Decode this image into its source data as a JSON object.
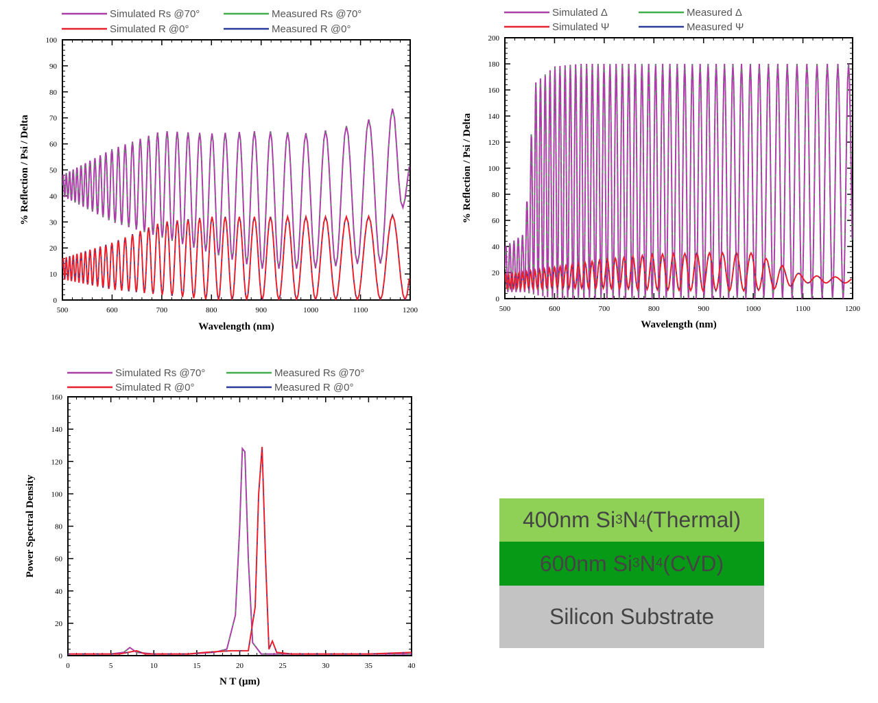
{
  "colors": {
    "sim_a": "#a83ea6",
    "meas_a": "#3fae49",
    "sim_b": "#e8202e",
    "meas_b": "#2a3a9a",
    "frame": "#000000"
  },
  "chart_data": [
    {
      "type": "line",
      "xlabel": "Wavelength (nm)",
      "ylabel": "% Reflection / Psi / Delta",
      "xlim": [
        500,
        1200
      ],
      "ylim": [
        0,
        100
      ],
      "xticks": [
        500,
        600,
        700,
        800,
        900,
        1000,
        1100,
        1200
      ],
      "yticks": [
        0,
        10,
        20,
        30,
        40,
        50,
        60,
        70,
        80,
        90,
        100
      ],
      "legend": {
        "placement": "top",
        "entries": [
          "Simulated Rs @70°",
          "Measured Rs @70°",
          "Simulated R @0°",
          "Measured R @0°"
        ]
      },
      "series": [
        {
          "name": "Simulated Rs @70°",
          "color_key": "sim_a",
          "envelope": {
            "x": [
              500,
              600,
              700,
              800,
              900,
              1000,
              1100,
              1170,
              1200
            ],
            "low": [
              40,
              30,
              24,
              18,
              12,
              12,
              14,
              14,
              52
            ],
            "high": [
              48,
              58,
              65,
              64,
              65,
              64,
              68,
              74,
              55
            ]
          },
          "fringe_spacing_nm": {
            "x": [
              500,
              1200
            ],
            "values": [
              6,
              52
            ]
          }
        },
        {
          "name": "Measured Rs @70°",
          "color_key": "meas_a",
          "overlaps": "Simulated Rs @70°"
        },
        {
          "name": "Simulated R @0°",
          "color_key": "sim_b",
          "envelope": {
            "x": [
              500,
              600,
              700,
              800,
              900,
              1000,
              1100,
              1200
            ],
            "low": [
              8,
              4,
              2,
              0,
              0,
              0,
              0,
              0
            ],
            "high": [
              16,
              22,
              30,
              32,
              32,
              32,
              32,
              33
            ]
          },
          "fringe_spacing_nm": {
            "x": [
              500,
              1200
            ],
            "values": [
              6,
              52
            ]
          }
        },
        {
          "name": "Measured R @0°",
          "color_key": "meas_b",
          "overlaps": "Simulated R @0°"
        }
      ]
    },
    {
      "type": "line",
      "xlabel": "Wavelength (nm)",
      "ylabel": "% Reflection / Psi / Delta",
      "xlim": [
        500,
        1200
      ],
      "ylim": [
        0,
        200
      ],
      "xticks": [
        500,
        600,
        700,
        800,
        900,
        1000,
        1100,
        1200
      ],
      "yticks": [
        0,
        20,
        40,
        60,
        80,
        100,
        120,
        140,
        160,
        180,
        200
      ],
      "legend": {
        "placement": "top",
        "entries": [
          "Simulated Δ",
          "Measured Δ",
          "Simulated Ψ",
          "Measured Ψ"
        ]
      },
      "series": [
        {
          "name": "Simulated Δ",
          "color_key": "sim_a",
          "envelope": {
            "x": [
              500,
              540,
              560,
              600,
              650,
              700,
              1200
            ],
            "low": [
              5,
              5,
              3,
              0,
              0,
              0,
              0
            ],
            "high": [
              40,
              50,
              165,
              178,
              180,
              180,
              180
            ]
          },
          "fringe_spacing_nm": {
            "x": [
              500,
              1200
            ],
            "values": [
              8,
              22
            ]
          }
        },
        {
          "name": "Measured Δ",
          "color_key": "meas_a",
          "overlaps": "Simulated Δ"
        },
        {
          "name": "Simulated Ψ",
          "color_key": "sim_b",
          "envelope": {
            "x": [
              500,
              700,
              800,
              900,
              1000,
              1060,
              1100,
              1200
            ],
            "low": [
              8,
              8,
              7,
              6,
              6,
              8,
              12,
              12
            ],
            "high": [
              18,
              30,
              34,
              35,
              35,
              25,
              18,
              16
            ]
          },
          "fringe_spacing_nm": {
            "x": [
              500,
              1200
            ],
            "values": [
              6,
              40
            ]
          }
        },
        {
          "name": "Measured Ψ",
          "color_key": "meas_b",
          "overlaps": "Simulated Ψ"
        }
      ]
    },
    {
      "type": "line",
      "xlabel": "N T (µm)",
      "ylabel": "Power Spectral Density",
      "xlim": [
        0,
        40
      ],
      "ylim": [
        0,
        160
      ],
      "xticks": [
        0,
        5,
        10,
        15,
        20,
        25,
        30,
        35,
        40
      ],
      "yticks": [
        0,
        20,
        40,
        60,
        80,
        100,
        120,
        140,
        160
      ],
      "legend": {
        "placement": "top",
        "entries": [
          "Simulated Rs @70°",
          "Measured Rs @70°",
          "Simulated R @0°",
          "Measured R @0°"
        ]
      },
      "series": [
        {
          "name": "Simulated Rs @70°",
          "color_key": "sim_a",
          "points": [
            [
              0,
              1
            ],
            [
              5,
              1
            ],
            [
              6.5,
              2
            ],
            [
              7.2,
              5
            ],
            [
              8,
              2
            ],
            [
              10,
              1
            ],
            [
              14,
              1
            ],
            [
              17,
              2
            ],
            [
              18.5,
              4
            ],
            [
              19.5,
              25
            ],
            [
              20,
              80
            ],
            [
              20.3,
              128
            ],
            [
              20.6,
              126
            ],
            [
              21,
              60
            ],
            [
              21.5,
              8
            ],
            [
              22.5,
              1
            ],
            [
              25,
              1
            ],
            [
              30,
              1
            ],
            [
              35,
              1
            ],
            [
              40,
              1
            ]
          ]
        },
        {
          "name": "Measured Rs @70°",
          "color_key": "meas_a",
          "overlaps": "Simulated Rs @70°"
        },
        {
          "name": "Simulated R @0°",
          "color_key": "sim_b",
          "points": [
            [
              0,
              1
            ],
            [
              6,
              1
            ],
            [
              8,
              3
            ],
            [
              9,
              1
            ],
            [
              14,
              1
            ],
            [
              16,
              2
            ],
            [
              19,
              3
            ],
            [
              21,
              3
            ],
            [
              21.8,
              30
            ],
            [
              22.2,
              100
            ],
            [
              22.6,
              129
            ],
            [
              23,
              60
            ],
            [
              23.4,
              4
            ],
            [
              23.8,
              9
            ],
            [
              24.3,
              2
            ],
            [
              26,
              1
            ],
            [
              30,
              1
            ],
            [
              35,
              1
            ],
            [
              40,
              2
            ]
          ]
        },
        {
          "name": "Measured R @0°",
          "color_key": "meas_b",
          "overlaps": "Simulated R @0°"
        }
      ]
    }
  ],
  "film_stack": {
    "layers": [
      {
        "pre": "400nm Si",
        "sub1": "3",
        "mid": "N",
        "sub2": "4",
        "post": " (Thermal)",
        "color": "#8fd156"
      },
      {
        "pre": "600nm Si",
        "sub1": "3",
        "mid": "N",
        "sub2": "4",
        "post": " (CVD)",
        "color": "#079a16"
      },
      {
        "pre": "Silicon Substrate",
        "sub1": "",
        "mid": "",
        "sub2": "",
        "post": "",
        "color": "#c3c3c3"
      }
    ]
  }
}
